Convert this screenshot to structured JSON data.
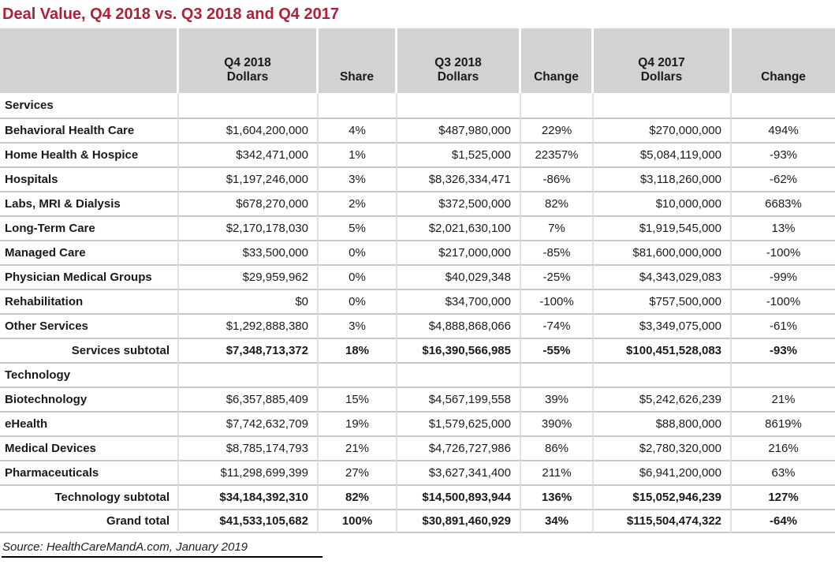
{
  "page": {
    "title": "Deal Value, Q4 2018 vs. Q3 2018 and Q4 2017",
    "source_note": "Source: HealthCareMandA.com, January 2019"
  },
  "colors": {
    "title_text": "#b22035",
    "header_background": "#d2d2d2",
    "row_border": "#c9c9c9",
    "column_border": "#e1e1e1",
    "body_text": "#1a1a1a"
  },
  "table": {
    "header_display": [
      "",
      "Q4 2018\nDollars",
      "Share",
      "Q3 2018\nDollars",
      "Change",
      "Q4 2017\nDollars",
      "Change"
    ]
  },
  "chart_data": {
    "type": "table",
    "title": "Deal Value, Q4 2018 vs. Q3 2018 and Q4 2017",
    "columns": [
      "Category",
      "Q4 2018 Dollars",
      "Share",
      "Q3 2018 Dollars",
      "Change",
      "Q4 2017 Dollars",
      "Change"
    ],
    "rows": [
      {
        "label": "Services",
        "row_type": "section",
        "values": [
          "",
          "",
          "",
          "",
          "",
          ""
        ]
      },
      {
        "label": "Behavioral Health Care",
        "row_type": "data",
        "values": [
          "$1,604,200,000",
          "4%",
          "$487,980,000",
          "229%",
          "$270,000,000",
          "494%"
        ]
      },
      {
        "label": "Home Health & Hospice",
        "row_type": "data",
        "values": [
          "$342,471,000",
          "1%",
          "$1,525,000",
          "22357%",
          "$5,084,119,000",
          "-93%"
        ]
      },
      {
        "label": "Hospitals",
        "row_type": "data",
        "values": [
          "$1,197,246,000",
          "3%",
          "$8,326,334,471",
          "-86%",
          "$3,118,260,000",
          "-62%"
        ]
      },
      {
        "label": "Labs, MRI & Dialysis",
        "row_type": "data",
        "values": [
          "$678,270,000",
          "2%",
          "$372,500,000",
          "82%",
          "$10,000,000",
          "6683%"
        ]
      },
      {
        "label": "Long-Term Care",
        "row_type": "data",
        "values": [
          "$2,170,178,030",
          "5%",
          "$2,021,630,100",
          "7%",
          "$1,919,545,000",
          "13%"
        ]
      },
      {
        "label": "Managed Care",
        "row_type": "data",
        "values": [
          "$33,500,000",
          "0%",
          "$217,000,000",
          "-85%",
          "$81,600,000,000",
          "-100%"
        ]
      },
      {
        "label": "Physician Medical Groups",
        "row_type": "data",
        "values": [
          "$29,959,962",
          "0%",
          "$40,029,348",
          "-25%",
          "$4,343,029,083",
          "-99%"
        ]
      },
      {
        "label": "Rehabilitation",
        "row_type": "data",
        "values": [
          "$0",
          "0%",
          "$34,700,000",
          "-100%",
          "$757,500,000",
          "-100%"
        ]
      },
      {
        "label": "Other Services",
        "row_type": "data",
        "values": [
          "$1,292,888,380",
          "3%",
          "$4,888,868,066",
          "-74%",
          "$3,349,075,000",
          "-61%"
        ]
      },
      {
        "label": "Services subtotal",
        "row_type": "subtotal",
        "values": [
          "$7,348,713,372",
          "18%",
          "$16,390,566,985",
          "-55%",
          "$100,451,528,083",
          "-93%"
        ]
      },
      {
        "label": "Technology",
        "row_type": "section",
        "values": [
          "",
          "",
          "",
          "",
          "",
          ""
        ]
      },
      {
        "label": "Biotechnology",
        "row_type": "data",
        "values": [
          "$6,357,885,409",
          "15%",
          "$4,567,199,558",
          "39%",
          "$5,242,626,239",
          "21%"
        ]
      },
      {
        "label": "eHealth",
        "row_type": "data",
        "values": [
          "$7,742,632,709",
          "19%",
          "$1,579,625,000",
          "390%",
          "$88,800,000",
          "8619%"
        ]
      },
      {
        "label": "Medical Devices",
        "row_type": "data",
        "values": [
          "$8,785,174,793",
          "21%",
          "$4,726,727,986",
          "86%",
          "$2,780,320,000",
          "216%"
        ]
      },
      {
        "label": "Pharmaceuticals",
        "row_type": "data",
        "values": [
          "$11,298,699,399",
          "27%",
          "$3,627,341,400",
          "211%",
          "$6,941,200,000",
          "63%"
        ]
      },
      {
        "label": "Technology subtotal",
        "row_type": "subtotal",
        "values": [
          "$34,184,392,310",
          "82%",
          "$14,500,893,944",
          "136%",
          "$15,052,946,239",
          "127%"
        ]
      },
      {
        "label": "Grand total",
        "row_type": "total",
        "values": [
          "$41,533,105,682",
          "100%",
          "$30,891,460,929",
          "34%",
          "$115,504,474,322",
          "-64%"
        ]
      }
    ],
    "source": "HealthCareMandA.com, January 2019"
  }
}
